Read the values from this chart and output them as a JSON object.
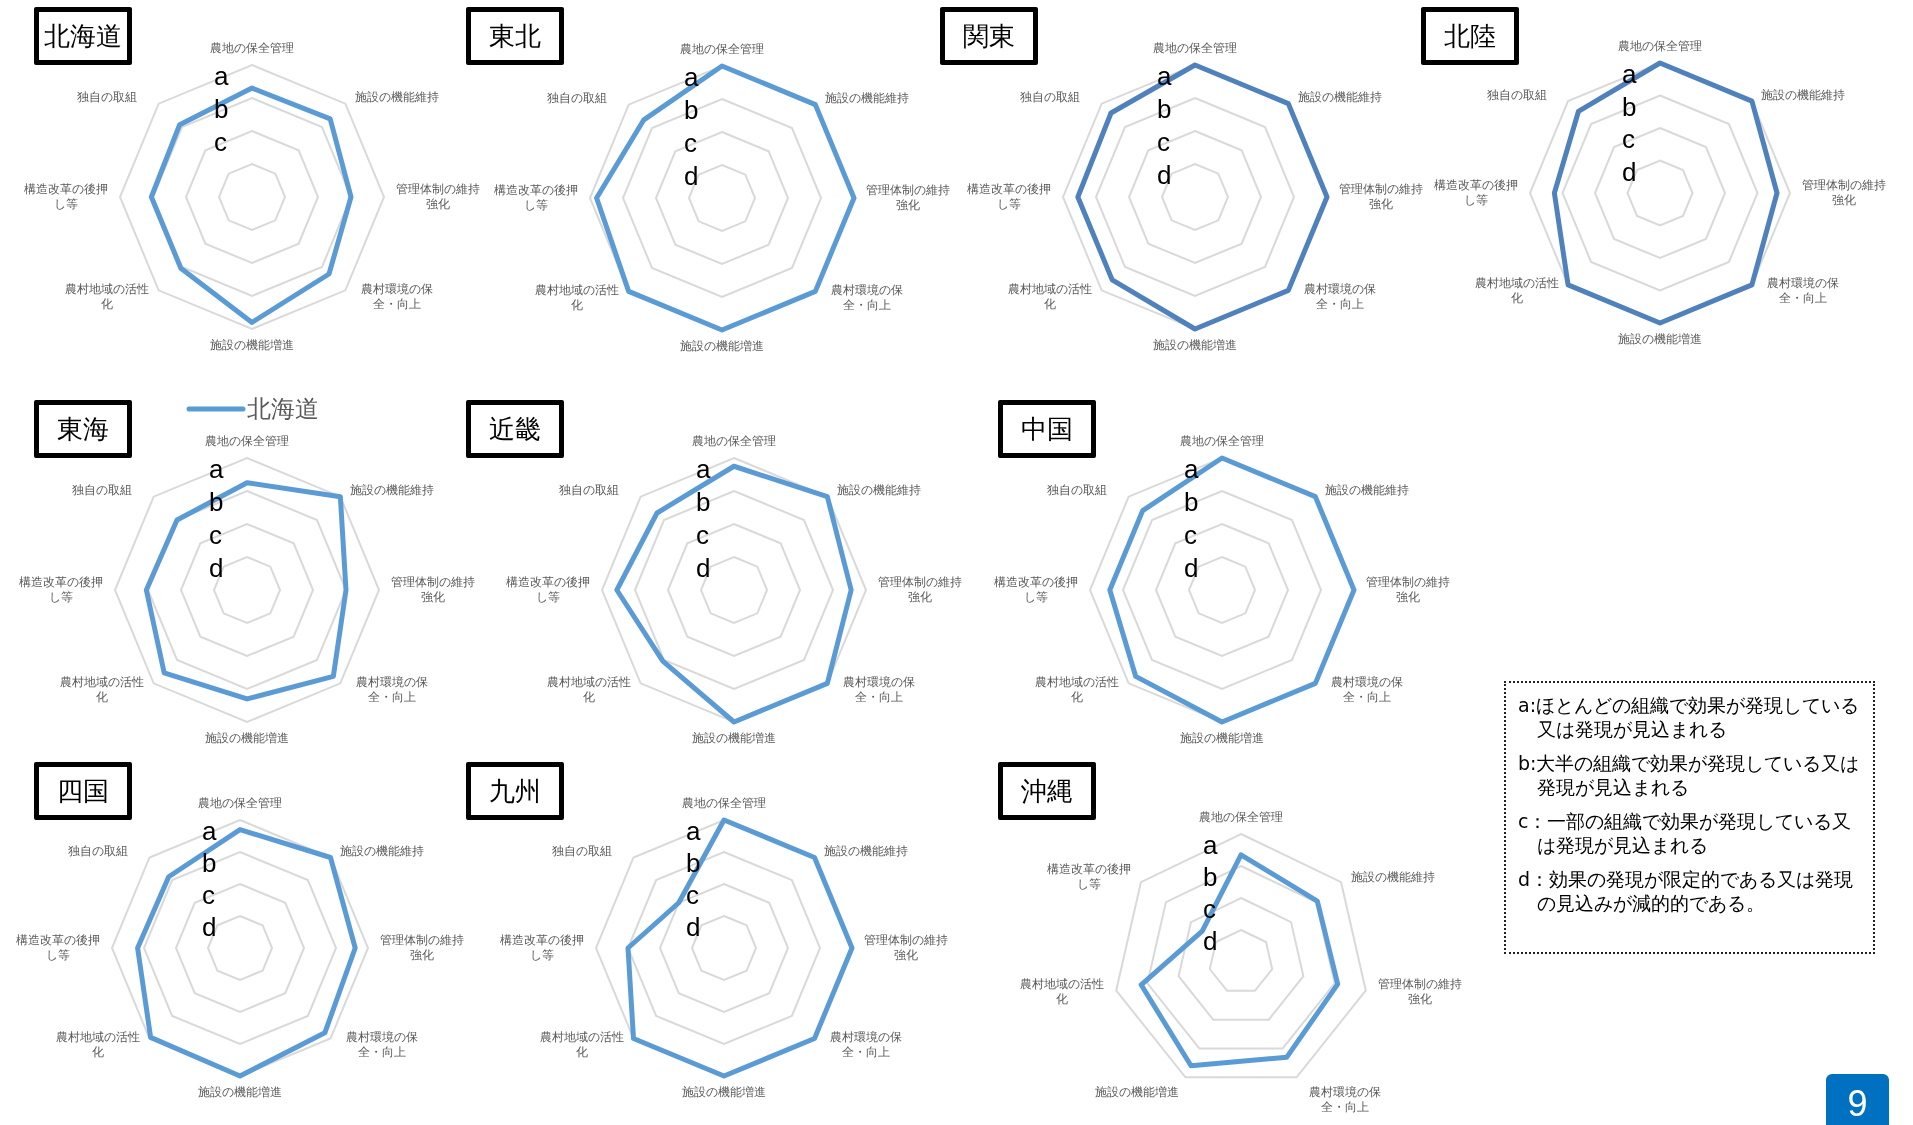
{
  "chart_data": [
    {
      "type": "radar",
      "title": "北海道",
      "categories": [
        "農地の保全管理",
        "施設の機能維持",
        "管理体制の維持強化",
        "農村環境の保全・向上",
        "施設の機能増進",
        "農村地域の活性化",
        "構造改革の後押し等",
        "独自の取組"
      ],
      "series": [
        {
          "color": "#5b9bd5",
          "values": [
            3.3,
            3.35,
            3.0,
            3.3,
            3.8,
            3.05,
            3.05,
            3.1
          ]
        }
      ],
      "ylim": [
        0,
        4
      ],
      "yticks": [
        {
          "value": 2,
          "label": "c"
        },
        {
          "value": 3,
          "label": "b"
        },
        {
          "value": 4,
          "label": "a"
        }
      ],
      "grid": true
    },
    {
      "type": "radar",
      "title": "東北",
      "categories": [
        "農地の保全管理",
        "施設の機能維持",
        "管理体制の維持強化",
        "農村環境の保全・向上",
        "施設の機能増進",
        "農村地域の活性化",
        "構造改革の後押し等",
        "独自の取組"
      ],
      "series": [
        {
          "color": "#5b9bd5",
          "values": [
            4.0,
            4.0,
            4.0,
            4.0,
            4.0,
            4.0,
            3.8,
            3.35
          ]
        }
      ],
      "ylim": [
        0,
        4
      ],
      "yticks": [
        {
          "value": 1,
          "label": "d"
        },
        {
          "value": 2,
          "label": "c"
        },
        {
          "value": 3,
          "label": "b"
        },
        {
          "value": 4,
          "label": "a"
        }
      ],
      "grid": true
    },
    {
      "type": "radar",
      "title": "関東",
      "categories": [
        "農地の保全管理",
        "施設の機能維持",
        "管理体制の維持強化",
        "農村環境の保全・向上",
        "施設の機能増進",
        "農村地域の活性化",
        "構造改革の後押し等",
        "独自の取組"
      ],
      "series": [
        {
          "color": "#4f81bd",
          "values": [
            4.0,
            4.0,
            4.0,
            4.0,
            4.0,
            3.55,
            3.55,
            3.6
          ]
        }
      ],
      "ylim": [
        0,
        4
      ],
      "yticks": [
        {
          "value": 1,
          "label": "d"
        },
        {
          "value": 2,
          "label": "c"
        },
        {
          "value": 3,
          "label": "b"
        },
        {
          "value": 4,
          "label": "a"
        }
      ],
      "grid": true
    },
    {
      "type": "radar",
      "title": "北陸",
      "categories": [
        "農地の保全管理",
        "施設の機能維持",
        "管理体制の維持強化",
        "農村環境の保全・向上",
        "施設の機能増進",
        "農村地域の活性化",
        "構造改革の後押し等",
        "独自の取組"
      ],
      "series": [
        {
          "color": "#4f81bd",
          "values": [
            4.0,
            4.0,
            3.6,
            4.0,
            4.0,
            4.0,
            3.25,
            3.55
          ]
        }
      ],
      "ylim": [
        0,
        4
      ],
      "yticks": [
        {
          "value": 1,
          "label": "d"
        },
        {
          "value": 2,
          "label": "c"
        },
        {
          "value": 3,
          "label": "b"
        },
        {
          "value": 4,
          "label": "a"
        }
      ],
      "grid": true
    },
    {
      "type": "radar",
      "title": "東海",
      "categories": [
        "農地の保全管理",
        "施設の機能維持",
        "管理体制の維持強化",
        "農村環境の保全・向上",
        "施設の機能増進",
        "農村地域の活性化",
        "構造改革の後押し等",
        "独自の取組"
      ],
      "series": [
        {
          "name": "北海道",
          "color": "#5b9bd5",
          "values": [
            3.25,
            4.0,
            3.0,
            3.7,
            3.3,
            3.55,
            3.05,
            3.0
          ]
        }
      ],
      "ylim": [
        0,
        4
      ],
      "yticks": [
        {
          "value": 1,
          "label": "d"
        },
        {
          "value": 2,
          "label": "c"
        },
        {
          "value": 3,
          "label": "b"
        },
        {
          "value": 4,
          "label": "a"
        }
      ],
      "grid": true,
      "legend": "top"
    },
    {
      "type": "radar",
      "title": "近畿",
      "categories": [
        "農地の保全管理",
        "施設の機能維持",
        "管理体制の維持強化",
        "農村環境の保全・向上",
        "施設の機能増進",
        "農村地域の活性化",
        "構造改革の後押し等",
        "独自の取組"
      ],
      "series": [
        {
          "color": "#5b9bd5",
          "values": [
            3.75,
            4.0,
            3.55,
            4.0,
            4.0,
            3.05,
            3.55,
            3.3
          ]
        }
      ],
      "ylim": [
        0,
        4
      ],
      "yticks": [
        {
          "value": 1,
          "label": "d"
        },
        {
          "value": 2,
          "label": "c"
        },
        {
          "value": 3,
          "label": "b"
        },
        {
          "value": 4,
          "label": "a"
        }
      ],
      "grid": true
    },
    {
      "type": "radar",
      "title": "中国",
      "categories": [
        "農地の保全管理",
        "施設の機能維持",
        "管理体制の維持強化",
        "農村環境の保全・向上",
        "施設の機能増進",
        "農村地域の活性化",
        "構造改革の後押し等",
        "独自の取組"
      ],
      "series": [
        {
          "color": "#5b9bd5",
          "values": [
            4.0,
            4.0,
            4.0,
            4.0,
            4.0,
            3.7,
            3.4,
            3.4
          ]
        }
      ],
      "ylim": [
        0,
        4
      ],
      "yticks": [
        {
          "value": 1,
          "label": "d"
        },
        {
          "value": 2,
          "label": "c"
        },
        {
          "value": 3,
          "label": "b"
        },
        {
          "value": 4,
          "label": "a"
        }
      ],
      "grid": true
    },
    {
      "type": "radar",
      "title": "四国",
      "categories": [
        "農地の保全管理",
        "施設の機能維持",
        "管理体制の維持強化",
        "農村環境の保全・向上",
        "施設の機能増進",
        "農村地域の活性化",
        "構造改革の後押し等",
        "独自の取組"
      ],
      "series": [
        {
          "color": "#5b9bd5",
          "values": [
            3.7,
            4.0,
            3.6,
            3.75,
            4.0,
            3.95,
            3.2,
            3.15
          ]
        }
      ],
      "ylim": [
        0,
        4
      ],
      "yticks": [
        {
          "value": 1,
          "label": "d"
        },
        {
          "value": 2,
          "label": "c"
        },
        {
          "value": 3,
          "label": "b"
        },
        {
          "value": 4,
          "label": "a"
        }
      ],
      "grid": true
    },
    {
      "type": "radar",
      "title": "九州",
      "categories": [
        "農地の保全管理",
        "施設の機能維持",
        "管理体制の維持強化",
        "農村環境の保全・向上",
        "施設の機能増進",
        "農村地域の活性化",
        "構造改革の後押し等",
        "独自の取組"
      ],
      "series": [
        {
          "color": "#5b9bd5",
          "values": [
            4.0,
            4.0,
            4.0,
            4.0,
            4.0,
            4.0,
            3.0,
            2.0
          ]
        }
      ],
      "ylim": [
        0,
        4
      ],
      "yticks": [
        {
          "value": 1,
          "label": "d"
        },
        {
          "value": 2,
          "label": "c"
        },
        {
          "value": 3,
          "label": "b"
        },
        {
          "value": 4,
          "label": "a"
        }
      ],
      "grid": true
    },
    {
      "type": "radar",
      "title": "沖縄",
      "categories": [
        "農地の保全管理",
        "施設の機能維持",
        "管理体制の維持強化",
        "農村環境の保全・向上",
        "施設の機能増進",
        "農村地域の活性化",
        "構造改革の後押し等"
      ],
      "series": [
        {
          "color": "#5b9bd5",
          "values": [
            3.35,
            3.05,
            3.1,
            3.3,
            3.6,
            3.2,
            1.55
          ]
        }
      ],
      "ylim": [
        0,
        4
      ],
      "yticks": [
        {
          "value": 1,
          "label": "d"
        },
        {
          "value": 2,
          "label": "c"
        },
        {
          "value": 3,
          "label": "b"
        },
        {
          "value": 4,
          "label": "a"
        }
      ],
      "grid": true
    },
    {
      "type": "other",
      "annotations": [
        "a:ほとんどの組織で効果が発現している又は発現が見込まれる",
        "b:大半の組織で効果が発現している又は発現が見込まれる",
        "c：一部の組織で効果が発現している又は発現が見込まれる",
        "d：効果の発現が限定的である又は発現の見込みが減的的である。",
        "9"
      ]
    }
  ]
}
